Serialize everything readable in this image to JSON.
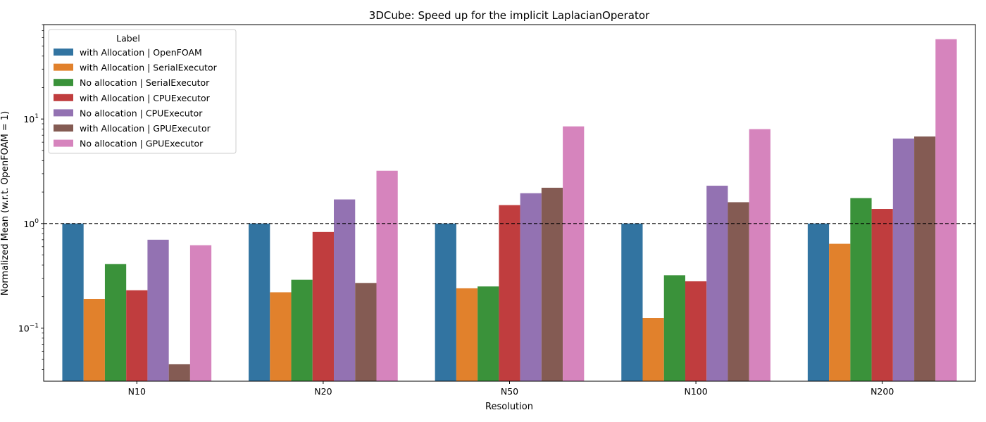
{
  "chart_data": {
    "type": "bar",
    "title": "3DCube: Speed up for the implicit LaplacianOperator",
    "xlabel": "Resolution",
    "ylabel": "Normalized Mean (w.r.t. OpenFOAM = 1)",
    "yscale": "log",
    "ylim": [
      0.031,
      80
    ],
    "yticks": [
      {
        "value": 0.1,
        "base": "10",
        "exp": "−1"
      },
      {
        "value": 1,
        "base": "10",
        "exp": "0"
      },
      {
        "value": 10,
        "base": "10",
        "exp": "1"
      }
    ],
    "reference_line": {
      "y": 1,
      "style": "dashed"
    },
    "categories": [
      "N10",
      "N20",
      "N50",
      "N100",
      "N200"
    ],
    "legend": {
      "title": "Label",
      "placement": "upper-left"
    },
    "series": [
      {
        "name": "with Allocation | OpenFOAM",
        "color": "#3274a1",
        "values": [
          1.0,
          1.0,
          1.0,
          1.0,
          1.0
        ]
      },
      {
        "name": "with Allocation | SerialExecutor",
        "color": "#e1812c",
        "values": [
          0.19,
          0.22,
          0.24,
          0.125,
          0.64
        ]
      },
      {
        "name": "No allocation | SerialExecutor",
        "color": "#3a923a",
        "values": [
          0.41,
          0.29,
          0.25,
          0.32,
          1.75
        ]
      },
      {
        "name": "with Allocation | CPUExecutor",
        "color": "#c03d3e",
        "values": [
          0.23,
          0.83,
          1.5,
          0.28,
          1.38
        ]
      },
      {
        "name": "No allocation | CPUExecutor",
        "color": "#9372b2",
        "values": [
          0.7,
          1.7,
          1.95,
          2.3,
          6.5
        ]
      },
      {
        "name": "with Allocation | GPUExecutor",
        "color": "#845b53",
        "values": [
          0.045,
          0.27,
          2.2,
          1.6,
          6.8
        ]
      },
      {
        "name": "No allocation | GPUExecutor",
        "color": "#d684bd",
        "values": [
          0.62,
          3.2,
          8.5,
          8.0,
          58.0
        ]
      }
    ]
  }
}
